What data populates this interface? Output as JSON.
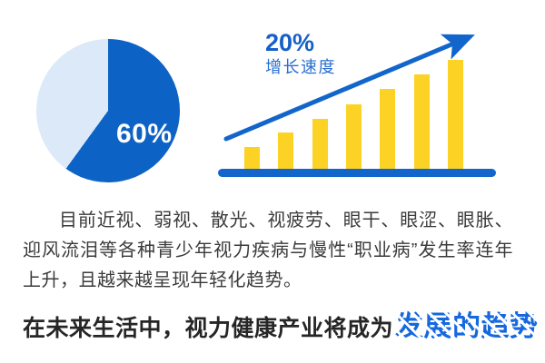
{
  "pie": {
    "label": "60%",
    "color_dark": "#0d63c5",
    "color_light": "#dbe9f9"
  },
  "growth": {
    "percent": "20%",
    "label": "增长速度",
    "text_color": "#1460c8"
  },
  "paragraph": {
    "text": "目前近视、弱视、散光、视疲劳、眼干、眼涩、眼胀、迎风流泪等各种青少年视力疾病与慢性“职业病”发生率连年上升，且越来越呈现年轻化趋势。"
  },
  "headline": {
    "prefix": "在未来生活中，视力健康产业将成为",
    "highlight": "发展的趋势",
    "highlight_color": "#1668dd"
  },
  "colors": {
    "accent_blue": "#1266cb",
    "bar_yellow": "#fcd225",
    "paragraph_text": "#3b3b3b",
    "headline_text": "#262626"
  },
  "chart_data": [
    {
      "type": "pie",
      "values": [
        60,
        40
      ],
      "labels": [
        "60%",
        ""
      ],
      "title": "",
      "colors": [
        "#0d63c5",
        "#dbe9f9"
      ],
      "start_angle_deg": 0,
      "direction": "clockwise",
      "annotations": [
        "60%"
      ]
    },
    {
      "type": "bar",
      "num_bars": 7,
      "values": [
        20,
        33,
        46,
        59,
        73,
        87,
        100
      ],
      "value_unit": "relative height, % of tallest bar (no axis labels shown)",
      "title": "",
      "xlabel": "",
      "ylabel": "",
      "grid": false,
      "legend": false,
      "bar_color": "#fcd225",
      "baseline_color": "#1266cb",
      "trend_arrow": true,
      "annotations": [
        "20%",
        "增长速度"
      ]
    }
  ]
}
